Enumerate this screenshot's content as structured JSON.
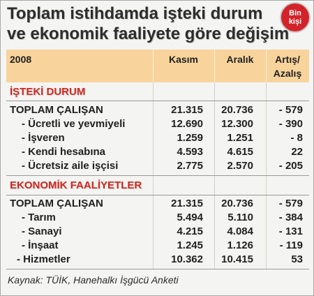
{
  "chart_data": {
    "type": "table",
    "title": "Toplam istihdamda işteki durum\nve ekonomik faaliyete göre değişim",
    "unit": "Bin\nkişi",
    "columns": [
      "2008",
      "Kasım",
      "Aralık",
      "Artış/\nAzalış"
    ],
    "sections": [
      {
        "name": "İŞTEKİ DURUM",
        "rows": [
          {
            "label": "TOPLAM ÇALIŞAN",
            "values": [
              "21.315",
              "20.736",
              "- 579"
            ]
          },
          {
            "label": "- Ücretli ve yevmiyeli",
            "values": [
              "12.690",
              "12.300",
              "- 390"
            ]
          },
          {
            "label": "- İşveren",
            "values": [
              "1.259",
              "1.251",
              "- 8"
            ]
          },
          {
            "label": "- Kendi hesabına",
            "values": [
              "4.593",
              "4.615",
              "22"
            ]
          },
          {
            "label": "- Ücretsiz aile işçisi",
            "values": [
              "2.775",
              "2.570",
              "- 205"
            ]
          }
        ]
      },
      {
        "name": "EKONOMİK FAALİYETLER",
        "rows": [
          {
            "label": "TOPLAM ÇALIŞAN",
            "values": [
              "21.315",
              "20.736",
              "- 579"
            ]
          },
          {
            "label": "- Tarım",
            "values": [
              "5.494",
              "5.110",
              "- 384"
            ]
          },
          {
            "label": "- Sanayi",
            "values": [
              "4.215",
              "4.084",
              "- 131"
            ]
          },
          {
            "label": "- İnşaat",
            "values": [
              "1.245",
              "1.126",
              "- 119"
            ]
          },
          {
            "label": "- Hizmetler",
            "values": [
              "10.362",
              "10.415",
              "53"
            ]
          }
        ]
      }
    ],
    "source": "Kaynak: TÜİK, Hanehalkı İşgücü Anketi"
  },
  "colors": {
    "title_text": "#2d2d2d",
    "badge": "#d3232a",
    "header_band": "#f8d49c",
    "section_title": "#d0281f"
  }
}
